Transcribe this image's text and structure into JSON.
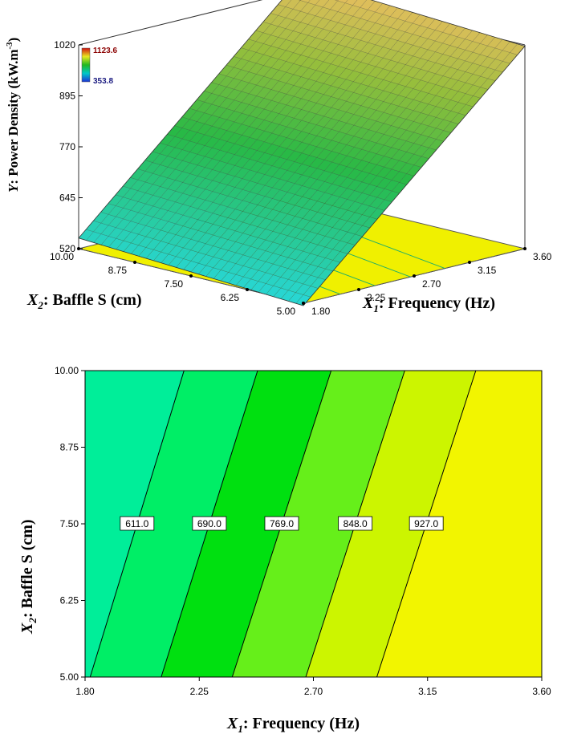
{
  "chart_data": [
    {
      "type": "surface",
      "z_label": {
        "italic": "Y",
        "text": ": Power Density (kW.m",
        "sup": "-3",
        "close": ")"
      },
      "x_label": {
        "italic": "X",
        "sub": "1",
        "text": ": Frequency (Hz)"
      },
      "y_label": {
        "italic": "X",
        "sub": "2",
        "text": ": Baffle S (cm)"
      },
      "x_ticks": [
        "1.80",
        "2.25",
        "2.70",
        "3.15",
        "3.60"
      ],
      "y_ticks": [
        "5.00",
        "6.25",
        "7.50",
        "8.75",
        "10.00"
      ],
      "z_ticks": [
        "520",
        "645",
        "770",
        "895",
        "1020"
      ],
      "xlim": [
        1.8,
        3.6
      ],
      "ylim": [
        5.0,
        10.0
      ],
      "zlim": [
        520,
        1020
      ],
      "legend": {
        "max": "1123.6",
        "min": "353.8",
        "max_color": "#c00000",
        "min_color": "#1f1fa0"
      },
      "corner_values": [
        {
          "x": 1.8,
          "y": 5.0,
          "z": 514
        },
        {
          "x": 3.6,
          "y": 5.0,
          "z": 1017
        },
        {
          "x": 1.8,
          "y": 10.0,
          "z": 546
        },
        {
          "x": 3.6,
          "y": 10.0,
          "z": 1049
        }
      ]
    },
    {
      "type": "contour",
      "xlabel": {
        "italic": "X",
        "sub": "1",
        "text": ": Frequency (Hz)"
      },
      "ylabel": {
        "italic": "X",
        "sub": "2",
        "text": ": Baffle S (cm)"
      },
      "x_ticks": [
        "1.80",
        "2.25",
        "2.70",
        "3.15",
        "3.60"
      ],
      "y_ticks": [
        "5.00",
        "6.25",
        "7.50",
        "8.75",
        "10.00"
      ],
      "xlim": [
        1.8,
        3.6
      ],
      "ylim": [
        5.0,
        10.0
      ],
      "levels": [
        {
          "value": 611.0,
          "label": "611.0",
          "x_at_ymin": 1.82,
          "x_at_ymax": 2.19
        },
        {
          "value": 690.0,
          "label": "690.0",
          "x_at_ymin": 2.1,
          "x_at_ymax": 2.48
        },
        {
          "value": 769.0,
          "label": "769.0",
          "x_at_ymin": 2.38,
          "x_at_ymax": 2.77
        },
        {
          "value": 848.0,
          "label": "848.0",
          "x_at_ymin": 2.67,
          "x_at_ymax": 3.06
        },
        {
          "value": 927.0,
          "label": "927.0",
          "x_at_ymin": 2.95,
          "x_at_ymax": 3.34
        }
      ],
      "band_colors": [
        "#00ee99",
        "#00ee66",
        "#00e010",
        "#66ef1a",
        "#ccf500",
        "#f2f500"
      ],
      "contour_line_color": "#000000"
    }
  ]
}
